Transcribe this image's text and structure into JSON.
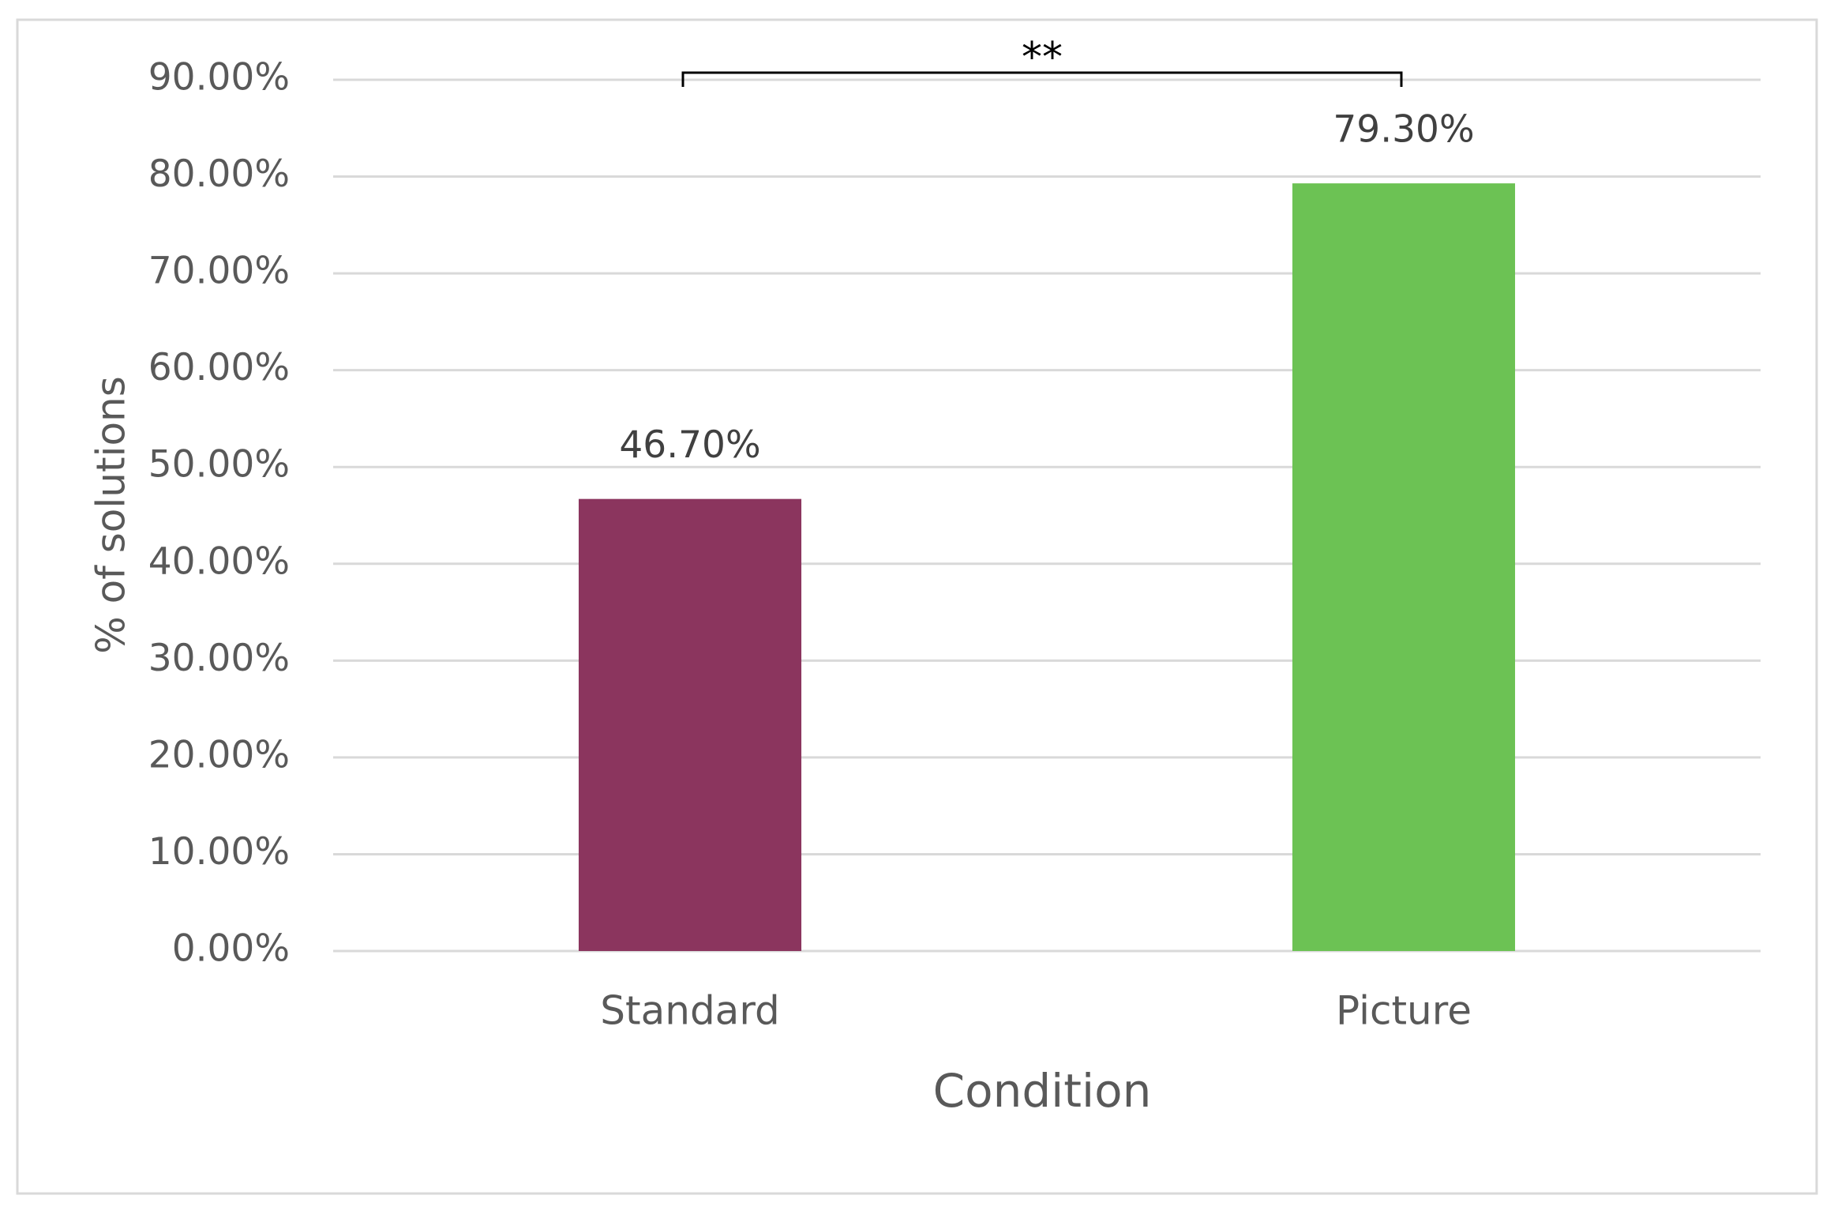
{
  "chart_data": {
    "type": "bar",
    "categories": [
      "Standard",
      "Picture"
    ],
    "values": [
      46.7,
      79.3
    ],
    "value_labels": [
      "46.70%",
      "79.30%"
    ],
    "colors": [
      "#8b355e",
      "#6cc254"
    ],
    "x_label": "Condition",
    "y_label": "% of solutions",
    "annotation": "**",
    "ylim": [
      0,
      90
    ],
    "yticks": [
      {
        "value": 0,
        "label": "0.00%"
      },
      {
        "value": 10,
        "label": "10.00%"
      },
      {
        "value": 20,
        "label": "20.00%"
      },
      {
        "value": 30,
        "label": "30.00%"
      },
      {
        "value": 40,
        "label": "40.00%"
      },
      {
        "value": 50,
        "label": "50.00%"
      },
      {
        "value": 60,
        "label": "60.00%"
      },
      {
        "value": 70,
        "label": "70.00%"
      },
      {
        "value": 80,
        "label": "80.00%"
      },
      {
        "value": 90,
        "label": "90.00%"
      }
    ],
    "grid": true
  }
}
